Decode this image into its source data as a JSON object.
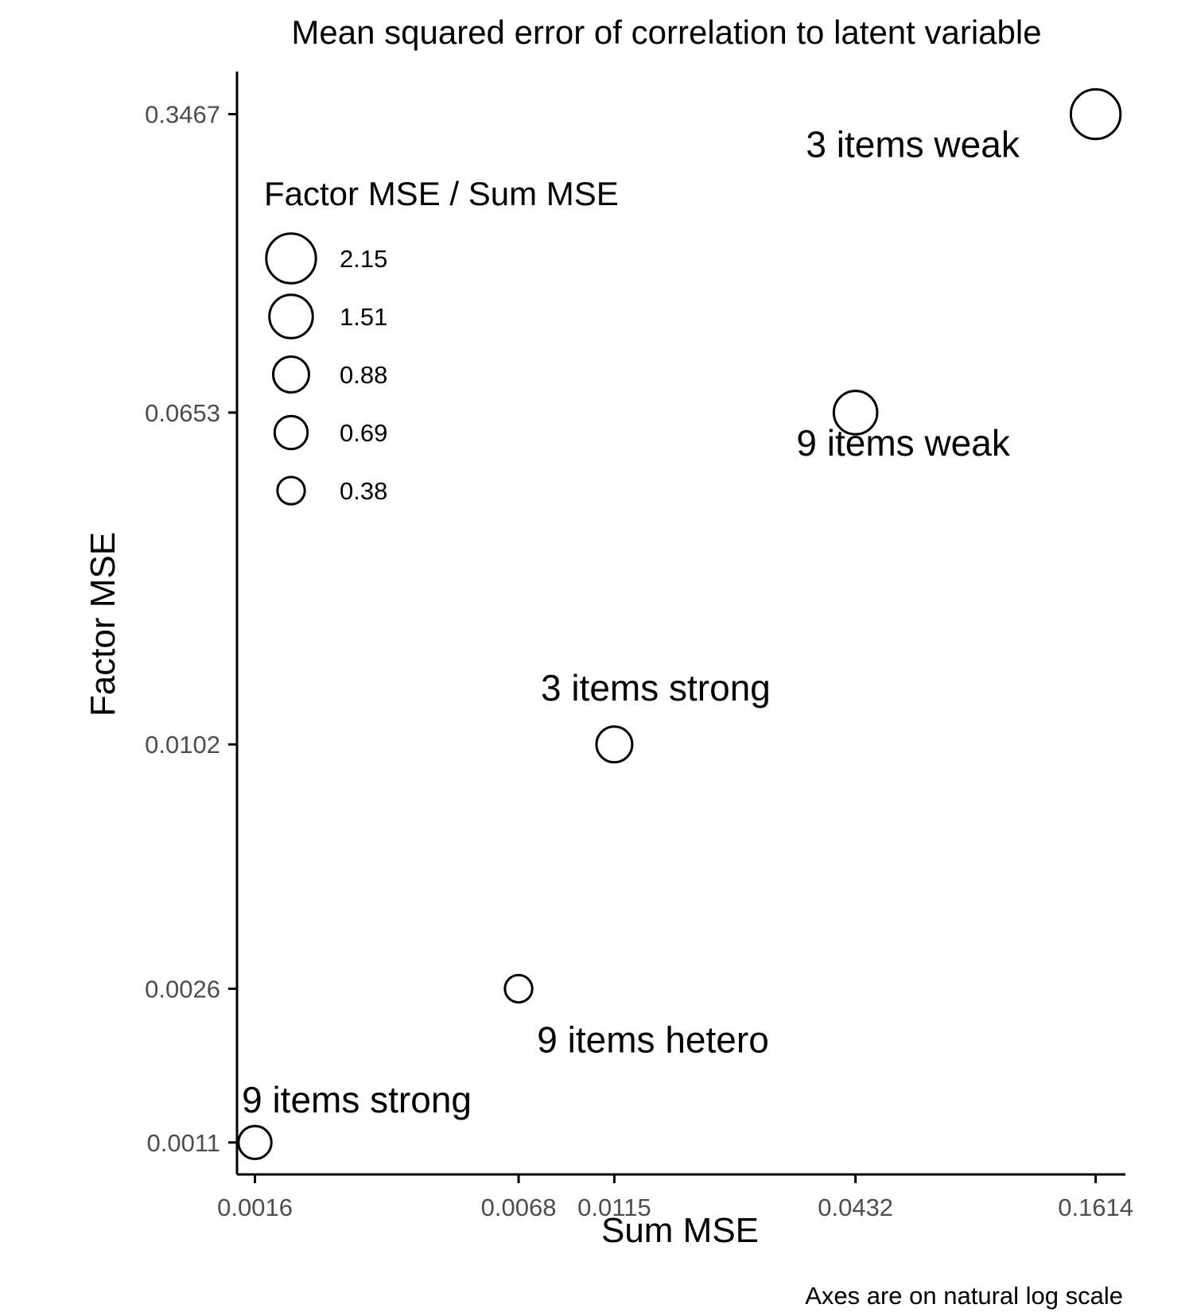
{
  "chart_data": {
    "type": "scatter",
    "title": "Mean squared error of correlation to latent variable",
    "xlabel": "Sum MSE",
    "ylabel": "Factor MSE",
    "caption": "Axes are on natural log scale",
    "x_scale": "log",
    "y_scale": "log",
    "xlim": [
      0.00145,
      0.19
    ],
    "ylim": [
      0.00092,
      0.44
    ],
    "x_ticks": [
      0.0016,
      0.0068,
      0.0115,
      0.0432,
      0.1614
    ],
    "x_tick_labels": [
      "0.0016",
      "0.0068",
      "0.0115",
      "0.0432",
      "0.1614"
    ],
    "y_ticks": [
      0.0011,
      0.0026,
      0.0102,
      0.0653,
      0.3467
    ],
    "y_tick_labels": [
      "0.0011",
      "0.0026",
      "0.0102",
      "0.0653",
      "0.3467"
    ],
    "grid": false,
    "legend": {
      "title": "Factor MSE / Sum MSE",
      "position": "top-left",
      "entries": [
        {
          "label": "2.15",
          "value": 2.15
        },
        {
          "label": "1.51",
          "value": 1.51
        },
        {
          "label": "0.88",
          "value": 0.88
        },
        {
          "label": "0.69",
          "value": 0.69
        },
        {
          "label": "0.38",
          "value": 0.38
        }
      ]
    },
    "points": [
      {
        "label": "3 items weak",
        "x": 0.1614,
        "y": 0.3467,
        "ratio": 2.15
      },
      {
        "label": "9 items weak",
        "x": 0.0432,
        "y": 0.0653,
        "ratio": 1.51
      },
      {
        "label": "3 items strong",
        "x": 0.0115,
        "y": 0.0102,
        "ratio": 0.88
      },
      {
        "label": "9 items hetero",
        "x": 0.0068,
        "y": 0.0026,
        "ratio": 0.38
      },
      {
        "label": "9 items strong",
        "x": 0.0016,
        "y": 0.0011,
        "ratio": 0.69
      }
    ]
  }
}
